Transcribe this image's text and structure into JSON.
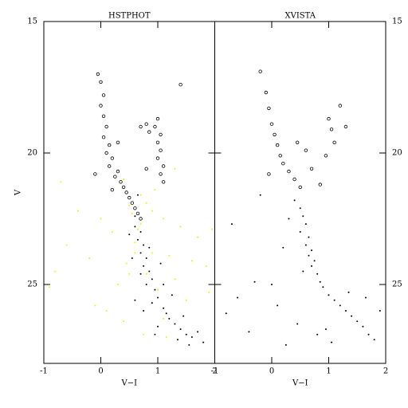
{
  "chart_data": [
    {
      "type": "scatter",
      "title": "HSTPHOT",
      "x_label": "V−I",
      "y_label": "V",
      "xlim": [
        -1,
        2
      ],
      "ylim": [
        28,
        15
      ],
      "xticks": [
        -1,
        0,
        1,
        2
      ],
      "yticks": [
        15,
        20,
        25
      ],
      "ytick_side": "left",
      "series": [
        {
          "color": "#f2ef00",
          "marker": "dot",
          "x": [
            -0.7,
            -0.4,
            -0.6,
            -0.8,
            -0.2,
            0.0,
            0.2,
            0.3,
            0.4,
            0.5,
            0.6,
            0.7,
            0.8,
            0.9,
            1.0,
            1.1,
            1.2,
            1.3,
            1.4,
            1.5,
            1.6,
            1.7,
            1.85,
            1.9,
            1.1,
            0.4,
            1.3,
            0.5,
            -0.1,
            0.95,
            1.15,
            0.75,
            1.95,
            -0.9,
            0.1,
            0.55,
            0.65,
            0.8,
            0.7,
            0.6,
            0.9,
            0.45
          ],
          "values": [
            21.1,
            22.2,
            23.5,
            24.5,
            24.0,
            22.5,
            23.0,
            25.0,
            21.0,
            22.0,
            23.4,
            22.7,
            24.6,
            23.8,
            25.2,
            22.5,
            23.9,
            24.8,
            22.8,
            25.6,
            24.1,
            23.2,
            24.3,
            25.3,
            26.3,
            26.4,
            20.6,
            24.6,
            25.8,
            21.4,
            27.0,
            26.9,
            22.9,
            25.1,
            26.0,
            22.3,
            22.9,
            21.9,
            21.6,
            23.8,
            22.2,
            24.2
          ]
        },
        {
          "color": "#000000",
          "marker": "dot",
          "x": [
            0.6,
            0.7,
            0.65,
            0.75,
            0.7,
            0.8,
            0.75,
            0.85,
            0.9,
            0.8,
            0.95,
            1.0,
            0.9,
            1.1,
            1.15,
            1.2,
            1.3,
            1.4,
            1.5,
            1.6,
            1.7,
            0.6,
            0.75,
            1.25,
            1.0,
            0.55,
            1.05,
            0.5,
            1.35,
            1.8,
            0.65,
            0.6,
            0.7,
            0.85,
            1.1,
            1.45,
            0.95,
            1.55
          ],
          "values": [
            22.8,
            23.0,
            23.3,
            23.5,
            23.8,
            24.0,
            24.3,
            24.5,
            24.8,
            25.0,
            25.2,
            25.5,
            25.7,
            25.9,
            26.1,
            26.3,
            26.5,
            26.7,
            26.9,
            27.0,
            26.8,
            25.6,
            26.0,
            25.4,
            26.6,
            24.0,
            24.2,
            23.1,
            27.1,
            27.2,
            21.6,
            22.4,
            24.6,
            23.6,
            25.0,
            26.2,
            26.9,
            27.3
          ]
        },
        {
          "color": "#000000",
          "marker": "circle-open",
          "x": [
            -0.05,
            0,
            0.05,
            0,
            0.05,
            0.1,
            0.05,
            0.15,
            0.1,
            0.2,
            0.15,
            0.3,
            0.25,
            0.35,
            0.4,
            0.45,
            0.5,
            0.55,
            0.6,
            0.65,
            0.7,
            1.0,
            0.95,
            1.05,
            1.0,
            1.05,
            1.0,
            1.1,
            1.05,
            1.1,
            0.85,
            1.4,
            0.8,
            0.3,
            -0.1,
            0.2,
            0.8,
            0.7
          ],
          "values": [
            17.0,
            17.3,
            17.8,
            18.2,
            18.6,
            19.0,
            19.4,
            19.7,
            20.0,
            20.2,
            20.5,
            20.7,
            20.9,
            21.1,
            21.3,
            21.5,
            21.7,
            21.9,
            22.1,
            22.3,
            22.5,
            18.7,
            19.0,
            19.3,
            19.6,
            19.9,
            20.2,
            20.5,
            20.8,
            21.1,
            19.2,
            17.4,
            18.9,
            19.6,
            20.8,
            21.4,
            20.6,
            19.0
          ]
        }
      ]
    },
    {
      "type": "scatter",
      "title": "XVISTA",
      "x_label": "V−I",
      "xlim": [
        -1,
        2
      ],
      "ylim": [
        28,
        15
      ],
      "xticks": [
        -1,
        0,
        1,
        2
      ],
      "yticks": [
        15,
        20,
        25
      ],
      "ytick_side": "right",
      "series": [
        {
          "color": "#000000",
          "marker": "dot",
          "x": [
            0.4,
            0.5,
            0.55,
            0.6,
            0.5,
            0.65,
            0.6,
            0.7,
            0.65,
            0.75,
            0.7,
            0.8,
            0.85,
            0.9,
            1.0,
            1.1,
            1.2,
            1.3,
            1.4,
            1.5,
            1.6,
            1.7,
            1.8,
            0.3,
            0.2,
            -0.3,
            -0.6,
            -0.8,
            -0.4,
            0.0,
            0.1,
            0.45,
            0.95,
            1.35,
            1.65,
            1.9,
            0.55,
            0.8,
            1.05,
            -0.2,
            -0.7,
            0.25
          ],
          "values": [
            21.8,
            22.1,
            22.4,
            22.7,
            23.0,
            23.2,
            23.5,
            23.7,
            23.9,
            24.1,
            24.3,
            24.6,
            24.9,
            25.1,
            25.4,
            25.6,
            25.8,
            26.0,
            26.2,
            26.4,
            26.6,
            26.9,
            27.1,
            22.5,
            23.6,
            24.9,
            25.5,
            26.1,
            26.8,
            25.0,
            25.8,
            26.5,
            26.7,
            25.3,
            25.5,
            26.0,
            24.5,
            26.9,
            27.2,
            21.6,
            22.7,
            27.3
          ]
        },
        {
          "color": "#000000",
          "marker": "circle-open",
          "x": [
            -0.2,
            -0.1,
            -0.05,
            0,
            0.05,
            0.1,
            0.15,
            0.2,
            0.3,
            0.4,
            0.5,
            1.0,
            1.05,
            1.1,
            0.95,
            1.2,
            1.3,
            0.7,
            0.85,
            -0.05,
            0.6,
            0.45
          ],
          "values": [
            16.9,
            17.7,
            18.3,
            18.9,
            19.3,
            19.7,
            20.1,
            20.4,
            20.7,
            21.0,
            21.3,
            18.7,
            19.1,
            19.6,
            20.1,
            18.2,
            19.0,
            20.6,
            21.2,
            20.8,
            19.9,
            19.6
          ]
        }
      ]
    }
  ]
}
